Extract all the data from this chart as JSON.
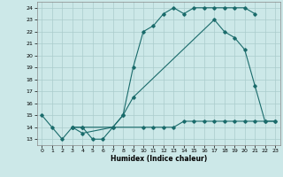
{
  "xlabel": "Humidex (Indice chaleur)",
  "background_color": "#cce8e8",
  "grid_color": "#aacccc",
  "line_color": "#1a6b6b",
  "xlim": [
    -0.5,
    23.5
  ],
  "ylim": [
    12.5,
    24.5
  ],
  "xticks": [
    0,
    1,
    2,
    3,
    4,
    5,
    6,
    7,
    8,
    9,
    10,
    11,
    12,
    13,
    14,
    15,
    16,
    17,
    18,
    19,
    20,
    21,
    22,
    23
  ],
  "yticks": [
    13,
    14,
    15,
    16,
    17,
    18,
    19,
    20,
    21,
    22,
    23,
    24
  ],
  "line1_x": [
    0,
    1,
    2,
    3,
    4,
    5,
    6,
    7,
    8,
    9,
    10,
    11,
    12,
    13,
    14,
    15,
    16,
    17,
    18,
    19,
    20,
    21
  ],
  "line1_y": [
    15.0,
    14.0,
    13.0,
    14.0,
    14.0,
    13.0,
    13.0,
    14.0,
    15.0,
    19.0,
    22.0,
    22.5,
    23.5,
    24.0,
    23.5,
    24.0,
    24.0,
    24.0,
    24.0,
    24.0,
    24.0,
    23.5
  ],
  "line2_x": [
    3,
    4,
    10,
    11,
    12,
    13,
    14,
    15,
    16,
    17,
    18,
    19,
    20,
    21,
    22,
    23
  ],
  "line2_y": [
    14.0,
    14.0,
    14.0,
    14.0,
    14.0,
    14.0,
    14.5,
    14.5,
    14.5,
    14.5,
    14.5,
    14.5,
    14.5,
    14.5,
    14.5,
    14.5
  ],
  "line3_x": [
    3,
    4,
    7,
    8,
    9,
    17,
    18,
    19,
    20,
    21,
    22,
    23
  ],
  "line3_y": [
    14.0,
    13.5,
    14.0,
    15.0,
    16.5,
    23.0,
    22.0,
    21.5,
    20.5,
    17.5,
    14.5,
    14.5
  ]
}
